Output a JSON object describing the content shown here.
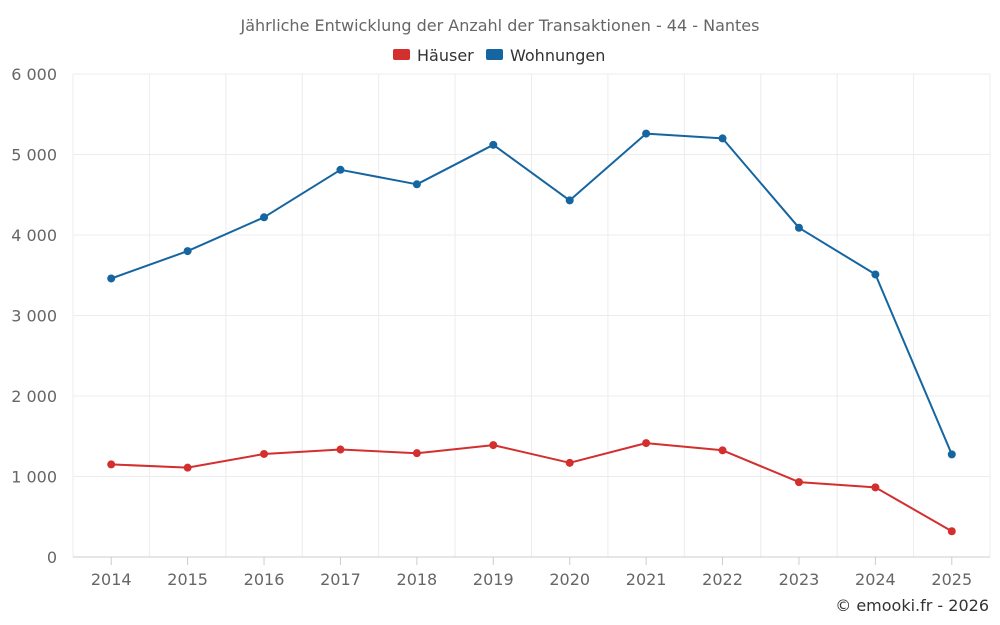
{
  "chart_data": {
    "type": "line",
    "title": "Jährliche Entwicklung der Anzahl der Transaktionen - 44 - Nantes",
    "categories": [
      "2014",
      "2015",
      "2016",
      "2017",
      "2018",
      "2019",
      "2020",
      "2021",
      "2022",
      "2023",
      "2024",
      "2025"
    ],
    "series": [
      {
        "name": "Häuser",
        "color": "#d32f2f",
        "values": [
          1150,
          1110,
          1280,
          1335,
          1290,
          1390,
          1170,
          1415,
          1325,
          930,
          865,
          320
        ]
      },
      {
        "name": "Wohnungen",
        "color": "#1565a0",
        "values": [
          3460,
          3800,
          4220,
          4810,
          4630,
          5120,
          4430,
          5260,
          5200,
          4090,
          3510,
          1275
        ]
      }
    ],
    "ylim": [
      0,
      6000
    ],
    "yticks": [
      0,
      1000,
      2000,
      3000,
      4000,
      5000,
      6000
    ],
    "ytick_labels": [
      "0",
      "1 000",
      "2 000",
      "3 000",
      "4 000",
      "5 000",
      "6 000"
    ],
    "xlabel": "",
    "ylabel": "",
    "grid": true,
    "legend_position": "top-center",
    "credit": "© emooki.fr - 2026"
  }
}
